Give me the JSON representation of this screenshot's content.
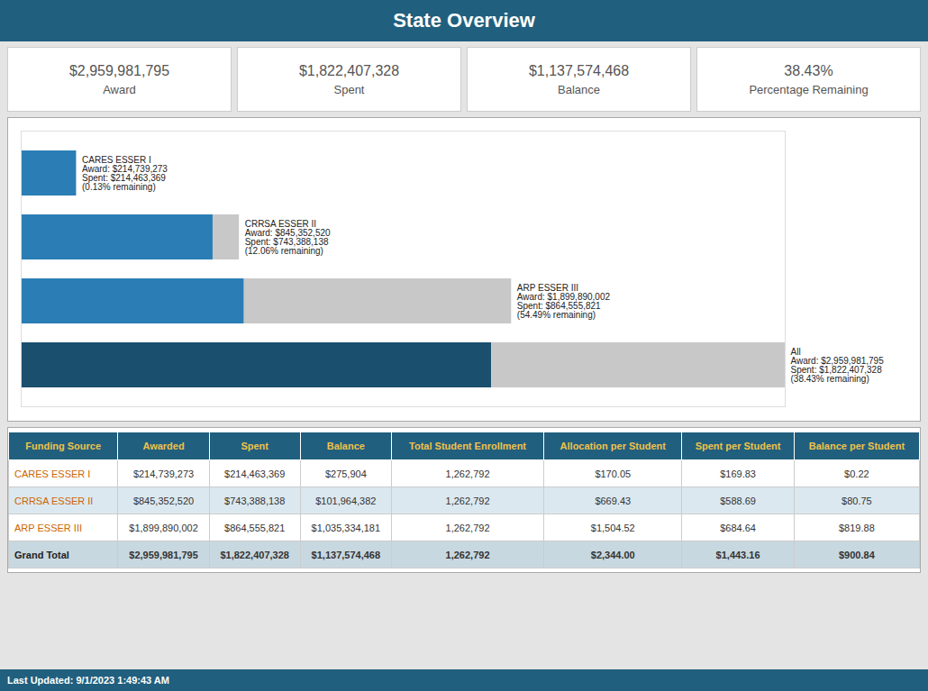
{
  "chart_data": {
    "type": "bar",
    "title": "State Overview",
    "orientation": "horizontal",
    "stacked": true,
    "tick_labels": false,
    "grid": false,
    "categories": [
      "CARES ESSER I",
      "CRRSA ESSER II",
      "ARP ESSER III",
      "All"
    ],
    "series": [
      {
        "name": "Spent",
        "colors": [
          "#2b7db5",
          "#2b7db5",
          "#2b7db5",
          "#1a4f6e"
        ],
        "values": [
          214463369,
          743388138,
          864555821,
          1822407328
        ]
      },
      {
        "name": "Balance",
        "color": "#c8c8c8",
        "values": [
          275904,
          101964382,
          1035334181,
          1137574468
        ]
      }
    ],
    "xlim": [
      0,
      2959981795
    ],
    "annotations": [
      "CARES ESSER I\nAward: $214,739,273\nSpent: $214,463,369\n(0.13% remaining)",
      "CRRSA ESSER II\nAward: $845,352,520\nSpent: $743,388,138\n(12.06% remaining)",
      "ARP ESSER III\nAward: $1,899,890,002\nSpent: $864,555,821\n(54.49% remaining)",
      "All\nAward: $2,959,981,795\nSpent: $1,822,407,328\n(38.43% remaining)"
    ],
    "kpi_cards": [
      {
        "value": "$2,959,981,795",
        "label": "Award"
      },
      {
        "value": "$1,822,407,328",
        "label": "Spent"
      },
      {
        "value": "$1,137,574,468",
        "label": "Balance"
      },
      {
        "value": "38.43%",
        "label": "Percentage Remaining"
      }
    ],
    "table": {
      "headers": [
        "Funding Source",
        "Awarded",
        "Spent",
        "Balance",
        "Total Student Enrollment",
        "Allocation per Student",
        "Spent per Student",
        "Balance per Student"
      ],
      "rows": [
        [
          "CARES ESSER I",
          "$214,739,273",
          "$214,463,369",
          "$275,904",
          "1,262,792",
          "$170.05",
          "$169.83",
          "$0.22"
        ],
        [
          "CRRSA ESSER II",
          "$845,352,520",
          "$743,388,138",
          "$101,964,382",
          "1,262,792",
          "$669.43",
          "$588.69",
          "$80.75"
        ],
        [
          "ARP ESSER III",
          "$1,899,890,002",
          "$864,555,821",
          "$1,035,334,181",
          "1,262,792",
          "$1,504.52",
          "$684.64",
          "$819.88"
        ],
        [
          "Grand Total",
          "$2,959,981,795",
          "$1,822,407,328",
          "$1,137,574,468",
          "1,262,792",
          "$2,344.00",
          "$1,443.16",
          "$900.84"
        ]
      ]
    },
    "footer": "Last Updated: 9/1/2023 1:49:43 AM"
  }
}
